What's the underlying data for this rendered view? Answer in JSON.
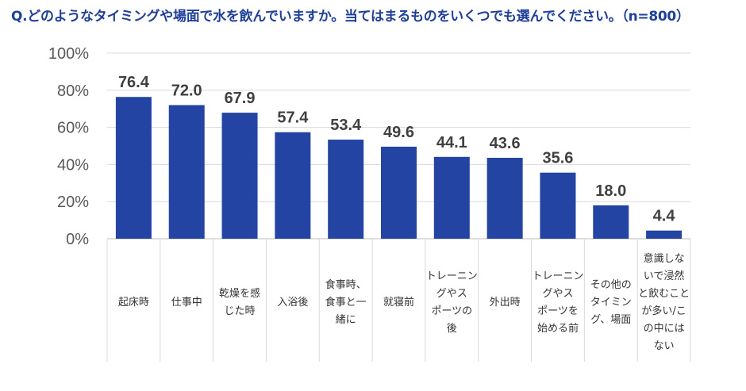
{
  "title": "Q.どのようなタイミングや場面で水を飲んでいますか。当てはまるものをいくつでも選んでください。（n=800）",
  "chart_data": {
    "type": "bar",
    "title": "Q.どのようなタイミングや場面で水を飲んでいますか。当てはまるものをいくつでも選んでください。（n=800）",
    "xlabel": "",
    "ylabel": "",
    "ylim": [
      0,
      100
    ],
    "yticks": [
      "0%",
      "20%",
      "40%",
      "60%",
      "80%",
      "100%"
    ],
    "grid": true,
    "bar_color": "#2344a3",
    "categories": [
      [
        "起床時"
      ],
      [
        "仕事中"
      ],
      [
        "乾燥を感",
        "じた時"
      ],
      [
        "入浴後"
      ],
      [
        "食事時、",
        "食事と一",
        "緒に"
      ],
      [
        "就寝前"
      ],
      [
        "トレーニン",
        "グやス",
        "ポーツの",
        "後"
      ],
      [
        "外出時"
      ],
      [
        "トレーニン",
        "グやス",
        "ポーツを",
        "始める前"
      ],
      [
        "その他の",
        "タイミン",
        "グ、場面"
      ],
      [
        "意識しな",
        "いで浸然",
        "と飲むこと",
        "が多い/こ",
        "の中には",
        "ない"
      ]
    ],
    "values": [
      76.4,
      72.0,
      67.9,
      57.4,
      53.4,
      49.6,
      44.1,
      43.6,
      35.6,
      18.0,
      4.4
    ],
    "value_labels": [
      "76.4",
      "72.0",
      "67.9",
      "57.4",
      "53.4",
      "49.6",
      "44.1",
      "43.6",
      "35.6",
      "18.0",
      "4.4"
    ]
  }
}
